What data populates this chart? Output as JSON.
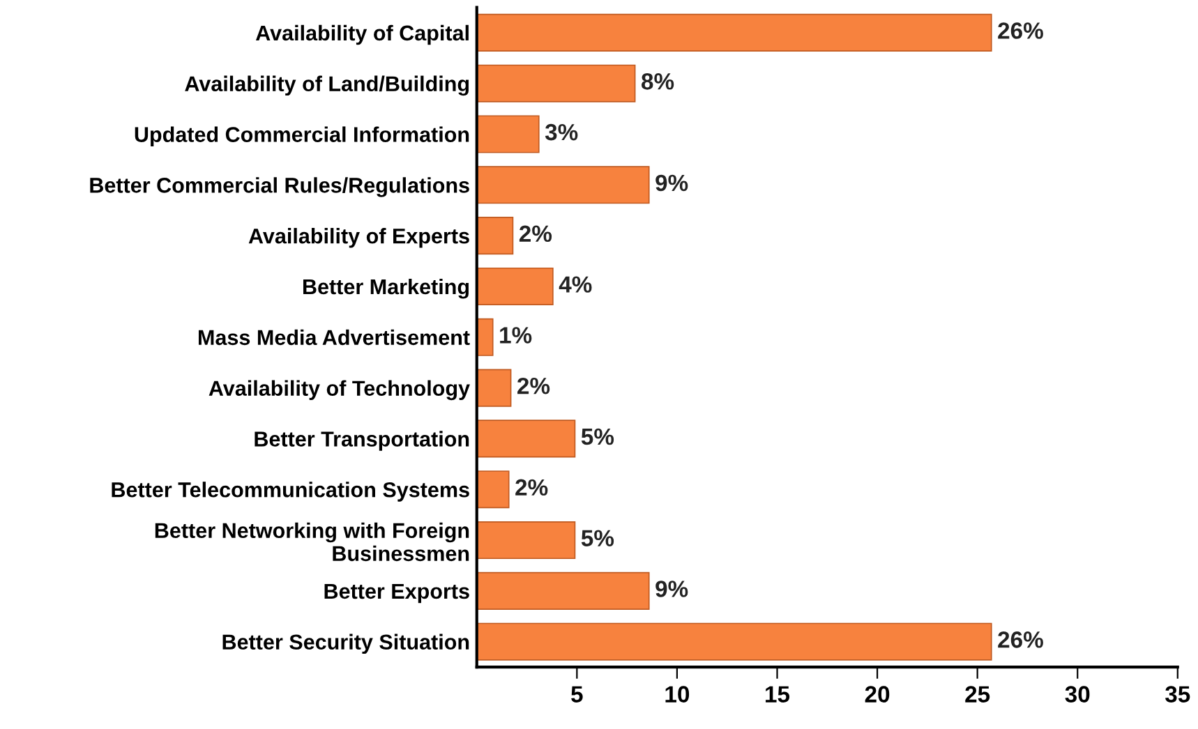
{
  "chart_data": {
    "type": "bar",
    "orientation": "horizontal",
    "categories": [
      "Availability of Capital",
      "Availability of Land/Building",
      "Updated Commercial Information",
      "Better Commercial Rules/Regulations",
      "Availability of Experts",
      "Better Marketing",
      "Mass Media Advertisement",
      "Availability of Technology",
      "Better Transportation",
      "Better Telecommunication Systems",
      "Better Networking with Foreign\nBusinessmen",
      "Better Exports",
      "Better Security Situation"
    ],
    "values": [
      25.7,
      7.9,
      3.1,
      8.6,
      1.8,
      3.8,
      0.8,
      1.7,
      4.9,
      1.6,
      4.9,
      8.6,
      25.7
    ],
    "value_labels": [
      "26%",
      "8%",
      "3%",
      "9%",
      "2%",
      "4%",
      "1%",
      "2%",
      "5%",
      "2%",
      "5%",
      "9%",
      "26%"
    ],
    "color": "#f7823e",
    "xlim": [
      0,
      35
    ],
    "xticks": [
      5,
      10,
      15,
      20,
      25,
      30,
      35
    ],
    "grid": false,
    "legend": false
  }
}
